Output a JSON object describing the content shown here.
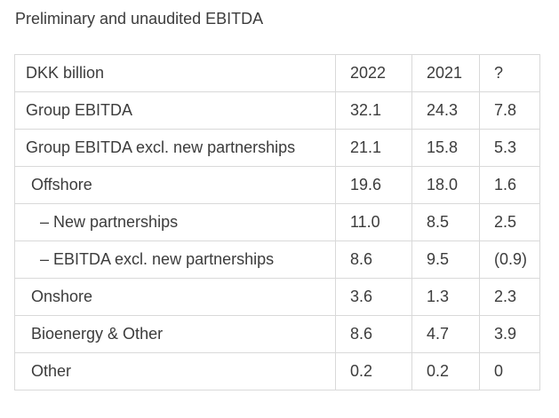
{
  "page": {
    "title": "Preliminary and unaudited EBITDA"
  },
  "colors": {
    "text": "#3c3c3c",
    "border": "#d9d9d9",
    "background": "#ffffff"
  },
  "table": {
    "columns": [
      "DKK billion",
      "2022",
      "2021",
      "?"
    ],
    "rows": [
      {
        "label": "Group EBITDA",
        "indent": 0,
        "values": [
          "32.1",
          "24.3",
          "7.8"
        ]
      },
      {
        "label": "Group EBITDA excl. new partnerships",
        "indent": 0,
        "values": [
          "21.1",
          "15.8",
          "5.3"
        ]
      },
      {
        "label": "Offshore",
        "indent": 1,
        "values": [
          "19.6",
          "18.0",
          "1.6"
        ]
      },
      {
        "label": "– New partnerships",
        "indent": 2,
        "values": [
          "11.0",
          "8.5",
          "2.5"
        ]
      },
      {
        "label": "– EBITDA excl. new partnerships",
        "indent": 2,
        "values": [
          "8.6",
          "9.5",
          "(0.9)"
        ]
      },
      {
        "label": "Onshore",
        "indent": 1,
        "values": [
          "3.6",
          "1.3",
          "2.3"
        ]
      },
      {
        "label": "Bioenergy & Other",
        "indent": 1,
        "values": [
          "8.6",
          "4.7",
          "3.9"
        ]
      },
      {
        "label": "Other",
        "indent": 1,
        "values": [
          "0.2",
          "0.2",
          "0"
        ]
      }
    ]
  },
  "chart_data": {
    "type": "table",
    "title": "Preliminary and unaudited EBITDA",
    "columns": [
      "DKK billion",
      "2022",
      "2021",
      "?"
    ],
    "rows": [
      [
        "Group EBITDA",
        32.1,
        24.3,
        7.8
      ],
      [
        "Group EBITDA excl. new partnerships",
        21.1,
        15.8,
        5.3
      ],
      [
        "Offshore",
        19.6,
        18.0,
        1.6
      ],
      [
        "– New partnerships",
        11.0,
        8.5,
        2.5
      ],
      [
        "– EBITDA excl. new partnerships",
        8.6,
        9.5,
        -0.9
      ],
      [
        "Onshore",
        3.6,
        1.3,
        2.3
      ],
      [
        "Bioenergy & Other",
        8.6,
        4.7,
        3.9
      ],
      [
        "Other",
        0.2,
        0.2,
        0
      ]
    ]
  }
}
